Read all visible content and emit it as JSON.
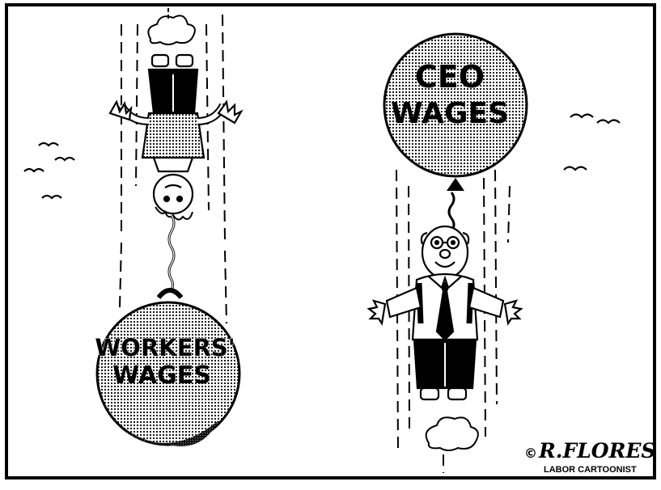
{
  "cartoon": {
    "workers_ball": {
      "line1": "WORKERS'",
      "line2": "WAGES"
    },
    "ceo_balloon": {
      "line1": "CEO",
      "line2": "WAGES"
    },
    "signature": {
      "copyright": "©",
      "name": "R.FLORES",
      "title": "LABOR CARTOONIST"
    }
  },
  "colors": {
    "ink": "#000000",
    "paper": "#ffffff",
    "shade": "#bdbdbd",
    "dark_shade": "#3a3a3a"
  }
}
